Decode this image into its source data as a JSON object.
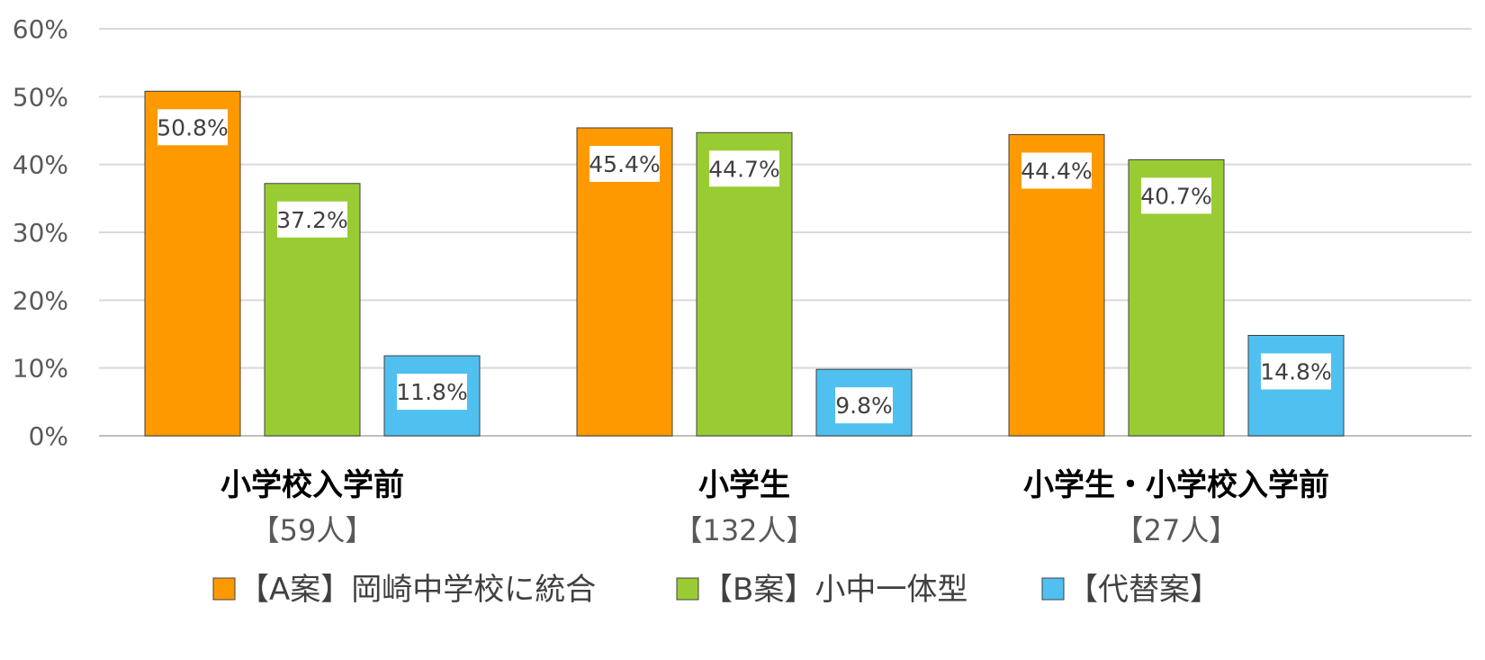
{
  "chart_data": {
    "type": "bar",
    "categories": [
      "小学校入学前",
      "小学生",
      "小学生・小学校入学前"
    ],
    "category_counts": [
      "【59人】",
      "【132人】",
      "【27人】"
    ],
    "series": [
      {
        "name": "【A案】岡崎中学校に統合",
        "values": [
          50.8,
          45.4,
          44.4
        ],
        "labels": [
          "50.8%",
          "45.4%",
          "44.4%"
        ],
        "color": "#FF9900"
      },
      {
        "name": "【B案】小中一体型",
        "values": [
          37.2,
          44.7,
          40.7
        ],
        "labels": [
          "37.2%",
          "44.7%",
          "40.7%"
        ],
        "color": "#99CC33"
      },
      {
        "name": "【代替案】",
        "values": [
          11.8,
          9.8,
          14.8
        ],
        "labels": [
          "11.8%",
          "9.8%",
          "14.8%"
        ],
        "color": "#4FC0F0"
      }
    ],
    "ylim": [
      0,
      60
    ],
    "y_ticks": [
      "0%",
      "10%",
      "20%",
      "30%",
      "40%",
      "50%",
      "60%"
    ],
    "grid": true,
    "legend_position": "bottom",
    "title": "",
    "xlabel": "",
    "ylabel": ""
  }
}
